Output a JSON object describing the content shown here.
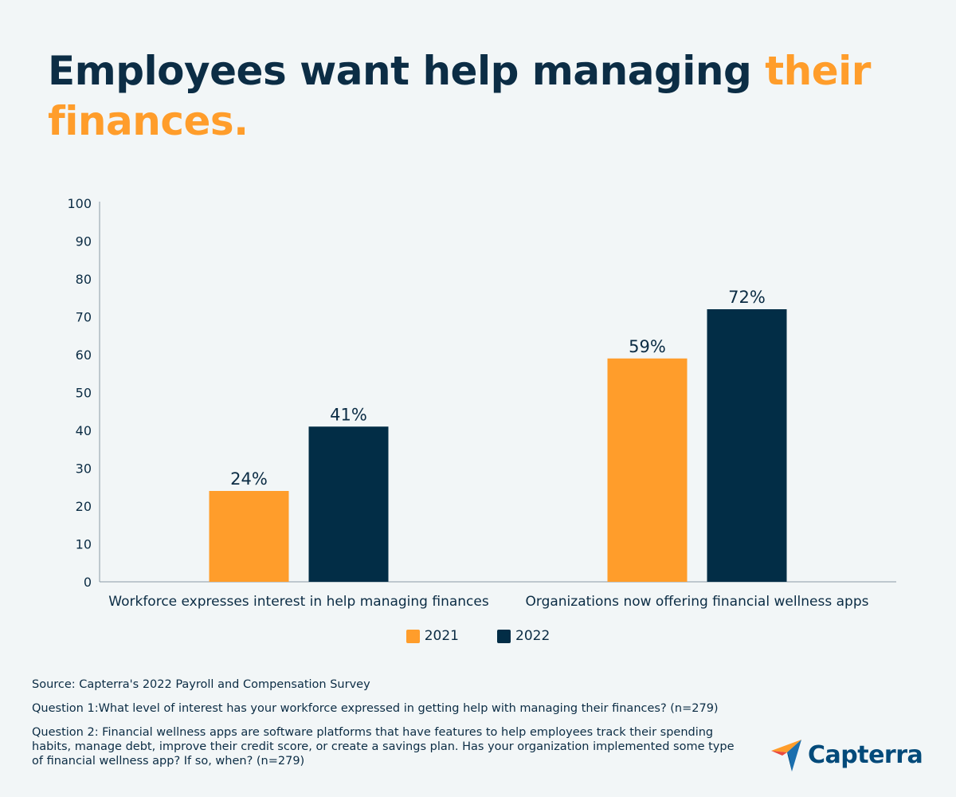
{
  "title": {
    "part1": "Employees want help managing ",
    "part2": "their finances."
  },
  "chart_data": {
    "type": "bar",
    "title": "Employees want help managing their finances.",
    "categories": [
      "Workforce expresses interest in help managing finances",
      "Organizations now offering financial wellness apps"
    ],
    "series": [
      {
        "name": "2021",
        "values": [
          24,
          59
        ],
        "labels": [
          "24%",
          "59%"
        ],
        "color": "#ff9d2b"
      },
      {
        "name": "2022",
        "values": [
          41,
          72
        ],
        "labels": [
          "41%",
          "72%"
        ],
        "color": "#022d46"
      }
    ],
    "ylim": [
      0,
      100
    ],
    "yticks": [
      0,
      10,
      20,
      30,
      40,
      50,
      60,
      70,
      80,
      90,
      100
    ],
    "xlabel": "",
    "ylabel": "",
    "grid": false,
    "legend_position": "bottom-center"
  },
  "footnotes": {
    "source": "Source: Capterra's 2022 Payroll and Compensation Survey",
    "q1": "Question 1:What level of interest has your workforce expressed in getting help with managing their finances? (n=279)",
    "q2": "Question 2: Financial wellness apps are software platforms that have features to help employees track their spending habits, manage debt, improve their credit score, or create a savings plan. Has your organization implemented some type of financial wellness app? If so, when? (n=279)"
  },
  "logo": {
    "icon": "capterra-arrow-icon",
    "text": "Capterra"
  }
}
